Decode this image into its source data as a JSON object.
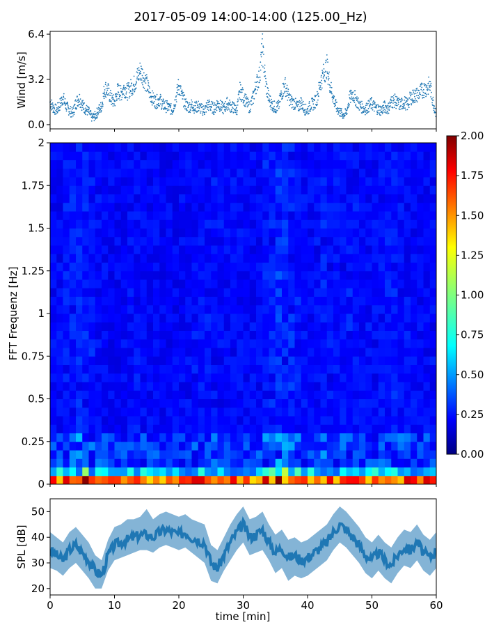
{
  "title": "2017-05-09 14:00-14:00 (125.00_Hz)",
  "chart_data": [
    {
      "type": "scatter",
      "panel": "wind",
      "ylabel": "Wind [m/s]",
      "xlim": [
        0,
        60
      ],
      "ylim": [
        -0.3,
        6.6
      ],
      "yticks": [
        0.0,
        3.2,
        6.4
      ],
      "ytick_labels": [
        "0.0",
        "3.2",
        "6.4"
      ],
      "marker_color": "#1f77b4",
      "x": [
        0,
        0.5,
        1,
        1.5,
        2,
        2.5,
        3,
        3.5,
        4,
        4.5,
        5,
        5.5,
        6,
        6.5,
        7,
        7.5,
        8,
        8.5,
        9,
        9.5,
        10,
        10.5,
        11,
        11.5,
        12,
        12.5,
        13,
        13.5,
        14,
        14.5,
        15,
        15.5,
        16,
        16.5,
        17,
        17.5,
        18,
        18.5,
        19,
        19.5,
        20,
        20.5,
        21,
        21.5,
        22,
        22.5,
        23,
        23.5,
        24,
        24.5,
        25,
        25.5,
        26,
        26.5,
        27,
        27.5,
        28,
        28.5,
        29,
        29.5,
        30,
        30.5,
        31,
        31.5,
        32,
        32.5,
        33,
        33.5,
        34,
        34.5,
        35,
        35.5,
        36,
        36.5,
        37,
        37.5,
        38,
        38.5,
        39,
        39.5,
        40,
        40.5,
        41,
        41.5,
        42,
        42.5,
        43,
        43.5,
        44,
        44.5,
        45,
        45.5,
        46,
        46.5,
        47,
        47.5,
        48,
        48.5,
        49,
        49.5,
        50,
        50.5,
        51,
        51.5,
        52,
        52.5,
        53,
        53.5,
        54,
        54.5,
        55,
        55.5,
        56,
        56.5,
        57,
        57.5,
        58,
        58.5,
        59,
        59.5,
        60
      ],
      "y": [
        1.6,
        1.2,
        1.0,
        1.4,
        1.9,
        1.3,
        1.0,
        0.8,
        1.5,
        1.9,
        1.4,
        1.1,
        0.9,
        0.5,
        0.6,
        1.0,
        1.3,
        2.6,
        2.4,
        1.8,
        1.6,
        2.4,
        2.2,
        2.6,
        2.3,
        2.6,
        2.8,
        3.3,
        3.8,
        3.4,
        2.9,
        2.2,
        1.8,
        1.6,
        1.8,
        1.4,
        1.3,
        1.2,
        1.0,
        1.8,
        2.8,
        2.0,
        1.5,
        1.2,
        1.4,
        1.2,
        1.3,
        1.1,
        1.0,
        1.4,
        1.3,
        1.1,
        1.5,
        1.3,
        1.1,
        1.5,
        1.3,
        1.2,
        1.0,
        2.4,
        2.0,
        1.6,
        1.2,
        1.8,
        2.8,
        3.4,
        5.4,
        2.9,
        1.8,
        1.4,
        1.2,
        1.3,
        2.3,
        2.8,
        2.0,
        1.6,
        1.5,
        1.2,
        1.6,
        1.1,
        1.0,
        1.4,
        1.5,
        1.9,
        3.0,
        3.6,
        4.1,
        2.8,
        1.9,
        1.2,
        0.9,
        0.7,
        0.8,
        1.8,
        2.2,
        1.8,
        1.4,
        1.2,
        1.1,
        1.3,
        1.5,
        1.2,
        1.1,
        1.0,
        1.3,
        1.1,
        1.6,
        1.7,
        1.5,
        1.4,
        1.6,
        1.4,
        1.9,
        2.0,
        2.1,
        2.3,
        2.5,
        2.6,
        2.8,
        1.6,
        0.8
      ]
    },
    {
      "type": "heatmap",
      "panel": "spectrogram",
      "ylabel": "FFT Frequenz [Hz]",
      "xlim": [
        0,
        60
      ],
      "ylim": [
        0,
        2
      ],
      "yticks": [
        0,
        0.25,
        0.5,
        0.75,
        1,
        1.25,
        1.5,
        1.75,
        2
      ],
      "ytick_labels": [
        "0",
        "0.25",
        "0.5",
        "0.75",
        "1",
        "1.25",
        "1.5",
        "1.75",
        "2"
      ],
      "colormap": "jet",
      "vmin": 0.0,
      "vmax": 2.0,
      "colorbar_ticks": [
        "0.00",
        "0.25",
        "0.50",
        "0.75",
        "1.00",
        "1.25",
        "1.50",
        "1.75",
        "2.00"
      ],
      "x_bins": 60,
      "freq_bins": 40,
      "time_intensity": [
        0.55,
        0.6,
        0.75,
        0.85,
        0.9,
        0.9,
        0.75,
        0.6,
        0.55,
        0.5,
        0.5,
        0.55,
        0.6,
        0.65,
        0.6,
        0.55,
        0.55,
        0.5,
        0.5,
        0.5,
        0.55,
        0.6,
        0.65,
        0.7,
        0.7,
        0.65,
        0.65,
        0.6,
        0.6,
        0.6,
        0.55,
        0.55,
        0.6,
        0.75,
        0.9,
        1.0,
        0.95,
        0.9,
        0.75,
        0.6,
        0.55,
        0.6,
        0.75,
        0.7,
        0.65,
        0.7,
        0.75,
        0.7,
        0.65,
        0.6,
        0.6,
        0.65,
        0.7,
        0.75,
        0.7,
        0.65,
        0.6,
        0.55,
        0.6,
        0.6
      ]
    },
    {
      "type": "area",
      "panel": "spl",
      "ylabel": "SPL [dB]",
      "xlabel": "time [min]",
      "xlim": [
        0,
        60
      ],
      "ylim": [
        17.5,
        55
      ],
      "yticks": [
        20,
        30,
        40,
        50
      ],
      "ytick_labels": [
        "20",
        "30",
        "40",
        "50"
      ],
      "xticks": [
        0,
        10,
        20,
        30,
        40,
        50,
        60
      ],
      "xtick_labels": [
        "0",
        "10",
        "20",
        "30",
        "40",
        "50",
        "60"
      ],
      "color": "#1f77b4",
      "x": [
        0,
        1,
        2,
        3,
        4,
        5,
        6,
        7,
        8,
        9,
        10,
        11,
        12,
        13,
        14,
        15,
        16,
        17,
        18,
        19,
        20,
        21,
        22,
        23,
        24,
        25,
        26,
        27,
        28,
        29,
        30,
        31,
        32,
        33,
        34,
        35,
        36,
        37,
        38,
        39,
        40,
        41,
        42,
        43,
        44,
        45,
        46,
        47,
        48,
        49,
        50,
        51,
        52,
        53,
        54,
        55,
        56,
        57,
        58,
        59,
        60
      ],
      "y_center": [
        35,
        33,
        31,
        35,
        37,
        34,
        31,
        27,
        25,
        33,
        37,
        38,
        39,
        40,
        41,
        41,
        40,
        42,
        43,
        42,
        41,
        42,
        40,
        39,
        38,
        30,
        28,
        33,
        38,
        42,
        45,
        40,
        41,
        43,
        38,
        34,
        36,
        32,
        33,
        31,
        32,
        34,
        36,
        38,
        42,
        45,
        43,
        40,
        37,
        33,
        31,
        34,
        31,
        29,
        33,
        36,
        35,
        38,
        34,
        32,
        35
      ],
      "y_low": [
        28,
        27,
        25,
        28,
        30,
        27,
        24,
        20,
        20,
        27,
        31,
        32,
        33,
        34,
        35,
        35,
        34,
        36,
        37,
        36,
        35,
        36,
        34,
        32,
        30,
        23,
        22,
        27,
        31,
        35,
        38,
        33,
        34,
        35,
        31,
        26,
        28,
        23,
        25,
        24,
        25,
        27,
        29,
        31,
        35,
        38,
        36,
        33,
        30,
        26,
        24,
        27,
        24,
        22,
        26,
        29,
        28,
        31,
        27,
        25,
        28
      ],
      "y_high": [
        42,
        40,
        38,
        42,
        44,
        41,
        38,
        33,
        31,
        39,
        44,
        45,
        47,
        47,
        48,
        51,
        47,
        49,
        50,
        49,
        48,
        49,
        47,
        46,
        45,
        37,
        35,
        40,
        45,
        49,
        52,
        47,
        48,
        50,
        45,
        41,
        43,
        39,
        40,
        38,
        39,
        41,
        43,
        45,
        49,
        52,
        50,
        47,
        44,
        40,
        38,
        41,
        38,
        36,
        40,
        43,
        42,
        45,
        41,
        39,
        42
      ]
    }
  ]
}
